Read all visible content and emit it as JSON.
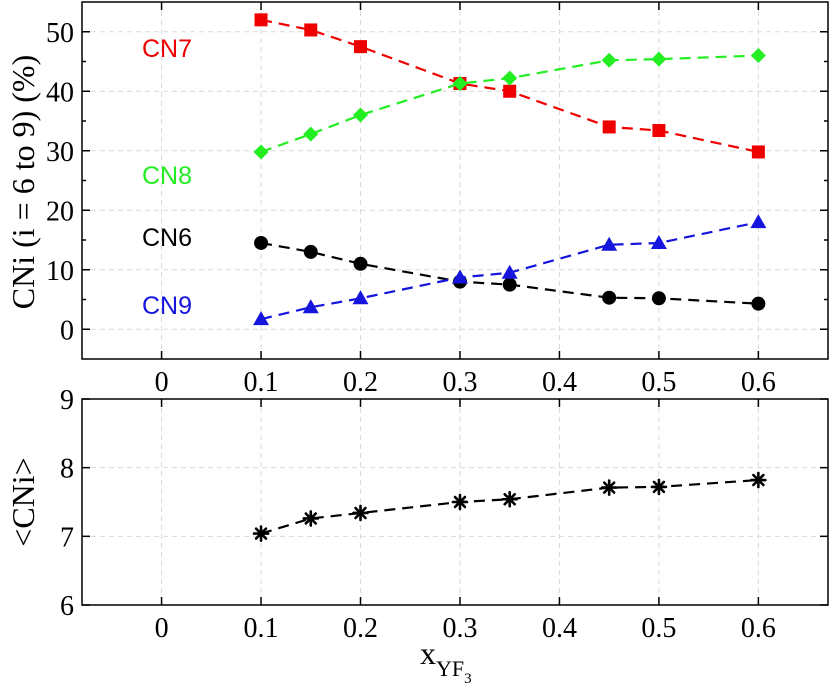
{
  "chart_data": [
    {
      "type": "line",
      "panel": "top",
      "title": "",
      "xlabel": "",
      "ylabel": "CNi (i = 6 to 9) (%)",
      "xlim": [
        -0.08,
        0.67
      ],
      "ylim": [
        -5,
        55
      ],
      "xticks": [
        0,
        0.1,
        0.2,
        0.3,
        0.4,
        0.5,
        0.6
      ],
      "xtick_labels": [
        "0",
        "0.1",
        "0.2",
        "0.3",
        "0.4",
        "0.5",
        "0.6"
      ],
      "yticks": [
        0,
        10,
        20,
        30,
        40,
        50
      ],
      "ytick_labels": [
        "0",
        "10",
        "20",
        "30",
        "40",
        "50"
      ],
      "grid": true,
      "x": [
        0.1,
        0.15,
        0.2,
        0.3,
        0.35,
        0.45,
        0.5,
        0.6
      ],
      "series": [
        {
          "name": "CN7",
          "color": "#ee0000",
          "marker": "square",
          "values": [
            52.0,
            50.3,
            47.5,
            41.3,
            40.0,
            34.0,
            33.4,
            29.8
          ]
        },
        {
          "name": "CN8",
          "color": "#22ee22",
          "marker": "diamond",
          "values": [
            29.8,
            32.8,
            36.0,
            41.3,
            42.2,
            45.2,
            45.4,
            46.0
          ]
        },
        {
          "name": "CN6",
          "color": "#000000",
          "marker": "circle",
          "values": [
            14.5,
            13.0,
            11.0,
            8.0,
            7.5,
            5.3,
            5.2,
            4.3
          ]
        },
        {
          "name": "CN9",
          "color": "#1515dd",
          "marker": "triangle",
          "values": [
            1.7,
            3.7,
            5.2,
            8.7,
            9.5,
            14.2,
            14.5,
            18.0
          ]
        }
      ]
    },
    {
      "type": "line",
      "panel": "bottom",
      "title": "",
      "xlabel": "x",
      "xlabel_sub": "YF",
      "xlabel_subsub": "3",
      "ylabel": "<CNi>",
      "xlim": [
        -0.08,
        0.67
      ],
      "ylim": [
        6,
        9
      ],
      "xticks": [
        0,
        0.1,
        0.2,
        0.3,
        0.4,
        0.5,
        0.6
      ],
      "xtick_labels": [
        "0",
        "0.1",
        "0.2",
        "0.3",
        "0.4",
        "0.5",
        "0.6"
      ],
      "yticks": [
        6,
        7,
        8,
        9
      ],
      "ytick_labels": [
        "6",
        "7",
        "8",
        "9"
      ],
      "grid": true,
      "x": [
        0.1,
        0.15,
        0.2,
        0.3,
        0.35,
        0.45,
        0.5,
        0.6
      ],
      "series": [
        {
          "name": "<CNi>",
          "color": "#000000",
          "marker": "asterisk",
          "values": [
            7.04,
            7.26,
            7.34,
            7.5,
            7.54,
            7.71,
            7.72,
            7.82
          ]
        }
      ]
    }
  ]
}
